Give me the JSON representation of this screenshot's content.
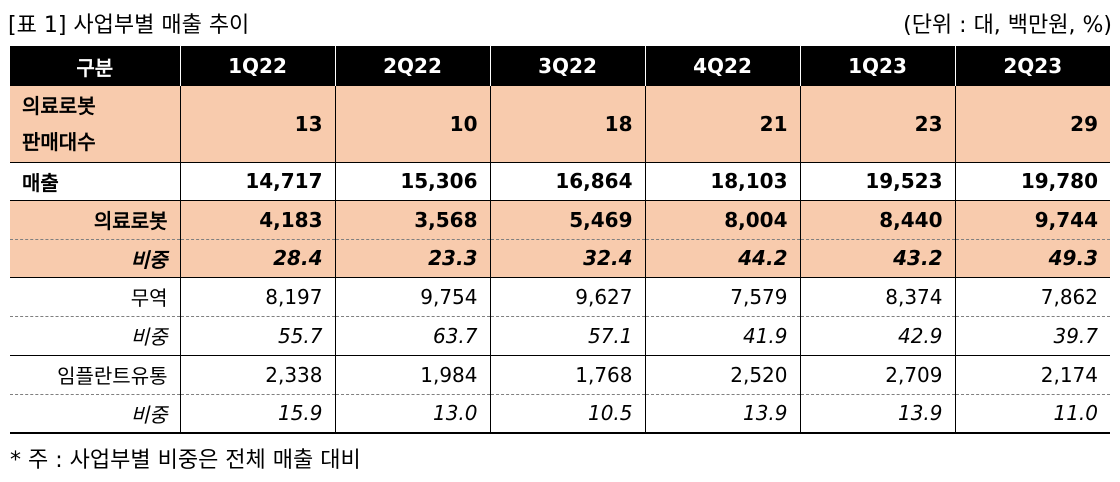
{
  "caption": {
    "title": "[표 1] 사업부별 매출 추이",
    "unit": "(단위 : 대, 백만원, %)"
  },
  "table": {
    "header_label": "구분",
    "columns": [
      "1Q22",
      "2Q22",
      "3Q22",
      "4Q22",
      "1Q23",
      "2Q23"
    ],
    "rows": [
      {
        "label_line1": "의료로봇",
        "label_line2": "판매대수",
        "values": [
          "13",
          "10",
          "18",
          "21",
          "23",
          "29"
        ]
      },
      {
        "label": "매출",
        "values": [
          "14,717",
          "15,306",
          "16,864",
          "18,103",
          "19,523",
          "19,780"
        ]
      },
      {
        "label": "의료로봇",
        "values": [
          "4,183",
          "3,568",
          "5,469",
          "8,004",
          "8,440",
          "9,744"
        ]
      },
      {
        "label": "비중",
        "values": [
          "28.4",
          "23.3",
          "32.4",
          "44.2",
          "43.2",
          "49.3"
        ]
      },
      {
        "label": "무역",
        "values": [
          "8,197",
          "9,754",
          "9,627",
          "7,579",
          "8,374",
          "7,862"
        ]
      },
      {
        "label": "비중",
        "values": [
          "55.7",
          "63.7",
          "57.1",
          "41.9",
          "42.9",
          "39.7"
        ]
      },
      {
        "label": "임플란트유통",
        "values": [
          "2,338",
          "1,984",
          "1,768",
          "2,520",
          "2,709",
          "2,174"
        ]
      },
      {
        "label": "비중",
        "values": [
          "15.9",
          "13.0",
          "10.5",
          "13.9",
          "13.9",
          "11.0"
        ]
      }
    ]
  },
  "note": "* 주 : 사업부별 비중은 전체 매출 대비"
}
